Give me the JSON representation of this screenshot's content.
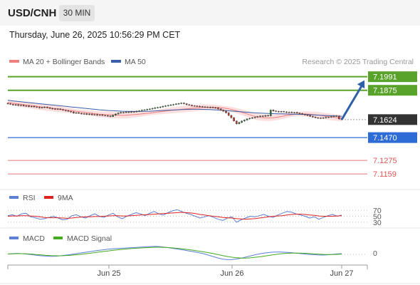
{
  "header": {
    "symbol": "USD/CNH",
    "timeframe": "30 MIN"
  },
  "datetime": "Thursday, June 26, 2025 10:56:29 PM CET",
  "legend": {
    "ma20_bb": "MA 20 + Bollinger Bands",
    "ma50": "MA 50",
    "credit": "Research © 2025 Trading Central"
  },
  "colors": {
    "resistance": "#5aa32a",
    "support": "#2d6bd6",
    "target": "#e87878",
    "current": "#333333",
    "ma20": "#f08080",
    "ma50": "#3a5ea8",
    "rsi": "#5b7fd4",
    "rsi_ma": "#dd2222",
    "macd": "#5b7fd4",
    "macd_signal": "#44aa22",
    "arrow": "#2f5fa8"
  },
  "chart_data": {
    "type": "candlestick",
    "ylim": [
      7.105,
      7.205
    ],
    "x_ticks": [
      "Jun 25",
      "Jun 26",
      "Jun 27"
    ],
    "levels": [
      {
        "label": "7.1991",
        "value": 7.1991,
        "kind": "resistance"
      },
      {
        "label": "7.1875",
        "value": 7.1875,
        "kind": "resistance"
      },
      {
        "label": "7.1624",
        "value": 7.1624,
        "kind": "current"
      },
      {
        "label": "7.1470",
        "value": 7.147,
        "kind": "support"
      },
      {
        "label": "7.1275",
        "value": 7.1275,
        "kind": "target"
      },
      {
        "label": "7.1159",
        "value": 7.1159,
        "kind": "target"
      }
    ],
    "close_series": [
      7.176,
      7.1755,
      7.175,
      7.1752,
      7.1745,
      7.1748,
      7.174,
      7.1742,
      7.1735,
      7.1738,
      7.1733,
      7.173,
      7.1725,
      7.1728,
      7.1732,
      7.1726,
      7.172,
      7.1716,
      7.1712,
      7.1716,
      7.171,
      7.1705,
      7.17,
      7.1695,
      7.169,
      7.168,
      7.1683,
      7.1678,
      7.1672,
      7.1675,
      7.1668,
      7.1672,
      7.1665,
      7.1668,
      7.1662,
      7.1665,
      7.166,
      7.1658,
      7.1655,
      7.165,
      7.1662,
      7.1672,
      7.168,
      7.1686,
      7.1684,
      7.169,
      7.1686,
      7.1692,
      7.169,
      7.1696,
      7.17,
      7.1705,
      7.1708,
      7.1712,
      7.1715,
      7.172,
      7.1725,
      7.1728,
      7.1732,
      7.1738,
      7.1742,
      7.1746,
      7.175,
      7.1754,
      7.1758,
      7.1762,
      7.1766,
      7.176,
      7.1752,
      7.1748,
      7.1742,
      7.174,
      7.1738,
      7.1736,
      7.1733,
      7.1732,
      7.1728,
      7.173,
      7.1726,
      7.1724,
      7.1716,
      7.1705,
      7.1696,
      7.1682,
      7.166,
      7.164,
      7.1612,
      7.1588,
      7.16,
      7.1612,
      7.162,
      7.163,
      7.1635,
      7.164,
      7.1645,
      7.165,
      7.1655,
      7.1652,
      7.166,
      7.1656,
      7.1706,
      7.1698,
      7.1694,
      7.169,
      7.1694,
      7.169,
      7.1686,
      7.1688,
      7.1684,
      7.1686,
      7.168,
      7.1676,
      7.167,
      7.1664,
      7.166,
      7.1652,
      7.1646,
      7.164,
      7.1638,
      7.1636,
      7.164,
      7.1644,
      7.1646,
      7.165,
      7.1656,
      7.1654,
      7.163,
      7.1624
    ],
    "ma20_series": [
      7.177,
      7.1765,
      7.176,
      7.1755,
      7.175,
      7.1745,
      7.174,
      7.1735,
      7.173,
      7.1725,
      7.172,
      7.1715,
      7.171,
      7.1705,
      7.17,
      7.1695,
      7.169,
      7.1685,
      7.168,
      7.1675,
      7.167,
      7.1668,
      7.1666,
      7.1664,
      7.1662,
      7.166,
      7.1662,
      7.1665,
      7.1668,
      7.1672,
      7.1676,
      7.168,
      7.1685,
      7.169,
      7.1695,
      7.17,
      7.1704,
      7.1708,
      7.1712,
      7.1716,
      7.172,
      7.1723,
      7.1726,
      7.1729,
      7.173,
      7.173,
      7.1728,
      7.1724,
      7.1718,
      7.171,
      7.17,
      7.1688,
      7.1676,
      7.1664,
      7.1652,
      7.1644,
      7.164,
      7.1638,
      7.164,
      7.1645,
      7.1652,
      7.166,
      7.1666,
      7.167,
      7.1672,
      7.1672,
      7.167,
      7.1666,
      7.1662,
      7.1656,
      7.165,
      7.1645,
      7.164,
      7.1636
    ],
    "ma50_series": [
      7.179,
      7.1785,
      7.178,
      7.1776,
      7.1772,
      7.1768,
      7.1764,
      7.176,
      7.1756,
      7.1752,
      7.1748,
      7.1744,
      7.174,
      7.1736,
      7.1732,
      7.1728,
      7.1724,
      7.172,
      7.1716,
      7.1712,
      7.1708,
      7.1705,
      7.1702,
      7.17,
      7.1698,
      7.1696,
      7.1695,
      7.1694,
      7.1694,
      7.1694,
      7.1695,
      7.1696,
      7.1698,
      7.17,
      7.1702,
      7.1704,
      7.1706,
      7.1708,
      7.171,
      7.1711,
      7.1712,
      7.1712,
      7.1712,
      7.1711,
      7.171,
      7.1708,
      7.1706,
      7.1703,
      7.17,
      7.1697,
      7.1694,
      7.1691,
      7.1688,
      7.1685,
      7.1682,
      7.168,
      7.1678,
      7.1676,
      7.1675,
      7.1674,
      7.1673,
      7.1672,
      7.1671,
      7.167,
      7.1669,
      7.1668,
      7.1666,
      7.1664,
      7.1662,
      7.166,
      7.1658,
      7.1656,
      7.1654,
      7.1652
    ],
    "rsi": {
      "legend": [
        "RSI",
        "9MA"
      ],
      "levels": [
        70,
        50,
        30
      ],
      "rsi_series": [
        52,
        55,
        50,
        58,
        60,
        48,
        45,
        40,
        42,
        46,
        50,
        44,
        38,
        40,
        52,
        55,
        48,
        44,
        52,
        58,
        50,
        46,
        54,
        60,
        48,
        42,
        50,
        56,
        62,
        58,
        52,
        60,
        66,
        58,
        54,
        62,
        68,
        72,
        66,
        60,
        56,
        50,
        44,
        48,
        52,
        46,
        40,
        36,
        44,
        48,
        30,
        38,
        44,
        50,
        48,
        52,
        56,
        50,
        46,
        54,
        60,
        66,
        64,
        58,
        54,
        50,
        44,
        48,
        40,
        46,
        52,
        56,
        50,
        54
      ],
      "ma_series": [
        50,
        51,
        51,
        52,
        52,
        51,
        50,
        48,
        46,
        45,
        45,
        45,
        44,
        43,
        44,
        46,
        47,
        48,
        48,
        49,
        49,
        50,
        51,
        52,
        52,
        51,
        51,
        52,
        53,
        54,
        55,
        56,
        57,
        58,
        59,
        60,
        61,
        62,
        63,
        62,
        61,
        59,
        56,
        54,
        52,
        50,
        48,
        46,
        45,
        44,
        42,
        41,
        40,
        41,
        42,
        44,
        46,
        48,
        50,
        51,
        52,
        54,
        56,
        57,
        57,
        56,
        54,
        53,
        51,
        50,
        50,
        50,
        51,
        52
      ]
    },
    "macd": {
      "legend": [
        "MACD",
        "MACD Signal"
      ],
      "levels": [
        0
      ],
      "macd_series": [
        0.2,
        0.5,
        0.7,
        0.5,
        0.2,
        -0.2,
        -0.6,
        -1.0,
        -1.2,
        -1.4,
        -1.3,
        -1.0,
        -0.6,
        -0.2,
        0.3,
        0.8,
        1.3,
        1.8,
        2.3,
        2.8,
        3.2,
        3.6,
        3.9,
        4.1,
        4.3,
        4.5,
        4.7,
        4.9,
        5.1,
        5.3,
        5.5,
        5.6,
        5.4,
        5.0,
        4.5,
        4.0,
        3.5,
        3.0,
        2.4,
        1.8,
        1.2,
        0.5,
        -0.5,
        -1.5,
        -2.5,
        -3.3,
        -3.7,
        -3.6,
        -3.2,
        -2.6,
        -1.8,
        -1.0,
        -0.2,
        0.5,
        1.0,
        1.4,
        1.6,
        1.6,
        1.5,
        1.3,
        1.0,
        0.7,
        0.3,
        0.0,
        -0.2,
        -0.4,
        -0.5,
        -0.3,
        0.0,
        0.3,
        0.5
      ],
      "signal_series": [
        0.3,
        0.4,
        0.5,
        0.5,
        0.4,
        0.2,
        -0.1,
        -0.4,
        -0.7,
        -0.9,
        -1.0,
        -1.0,
        -0.9,
        -0.7,
        -0.4,
        -0.1,
        0.3,
        0.7,
        1.1,
        1.6,
        2.0,
        2.4,
        2.8,
        3.2,
        3.5,
        3.8,
        4.1,
        4.3,
        4.5,
        4.7,
        4.9,
        5.0,
        5.0,
        4.9,
        4.7,
        4.4,
        4.1,
        3.7,
        3.3,
        2.8,
        2.3,
        1.8,
        1.2,
        0.6,
        -0.1,
        -0.8,
        -1.5,
        -2.0,
        -2.4,
        -2.6,
        -2.6,
        -2.4,
        -2.0,
        -1.6,
        -1.1,
        -0.6,
        -0.1,
        0.3,
        0.6,
        0.8,
        0.9,
        0.9,
        0.8,
        0.6,
        0.4,
        0.2,
        0.0,
        -0.1,
        -0.1,
        0.0,
        0.2
      ]
    }
  }
}
